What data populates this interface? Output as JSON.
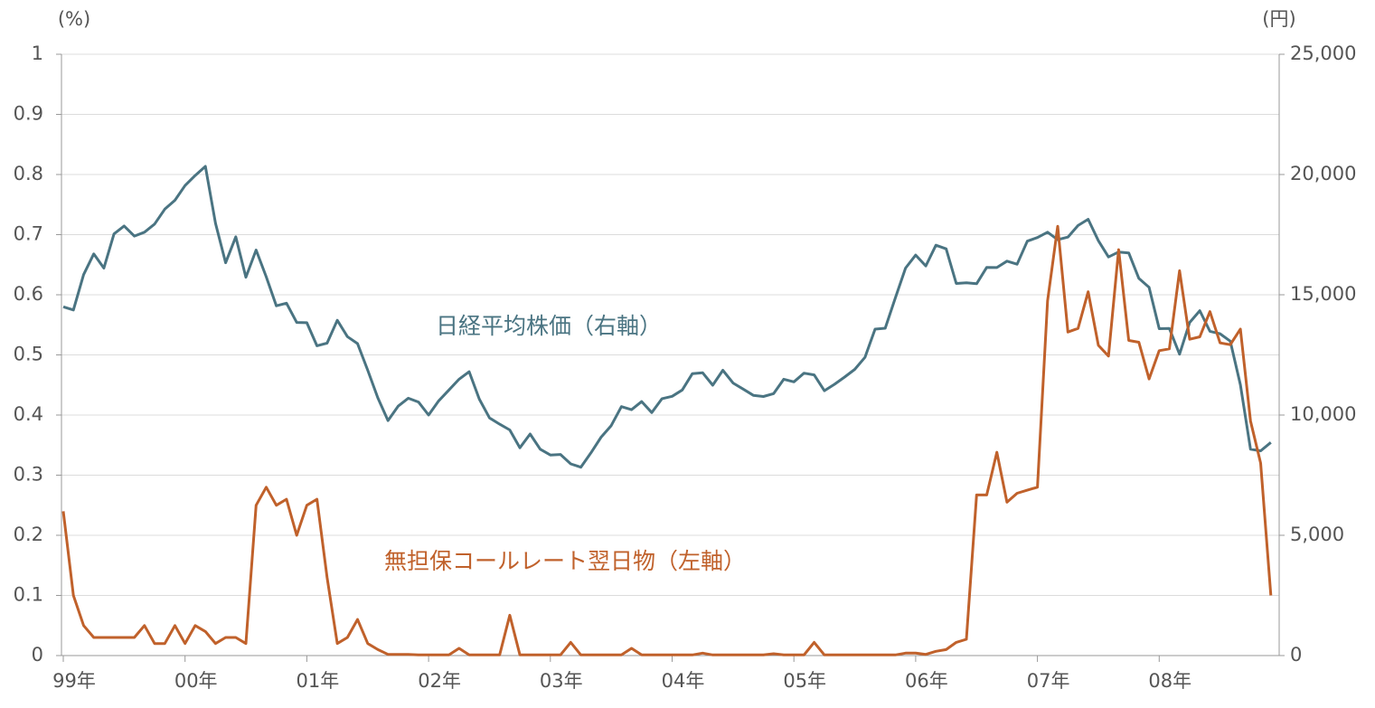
{
  "chart_data": {
    "type": "line",
    "y_unit_label": "(%)",
    "y2_unit_label": "(円)",
    "categories": [
      "99年",
      null,
      null,
      null,
      null,
      null,
      null,
      null,
      null,
      null,
      null,
      null,
      "00年",
      null,
      null,
      null,
      null,
      null,
      null,
      null,
      null,
      null,
      null,
      null,
      "01年",
      null,
      null,
      null,
      null,
      null,
      null,
      null,
      null,
      null,
      null,
      null,
      "02年",
      null,
      null,
      null,
      null,
      null,
      null,
      null,
      null,
      null,
      null,
      null,
      "03年",
      null,
      null,
      null,
      null,
      null,
      null,
      null,
      null,
      null,
      null,
      null,
      "04年",
      null,
      null,
      null,
      null,
      null,
      null,
      null,
      null,
      null,
      null,
      null,
      "05年",
      null,
      null,
      null,
      null,
      null,
      null,
      null,
      null,
      null,
      null,
      null,
      "06年",
      null,
      null,
      null,
      null,
      null,
      null,
      null,
      null,
      null,
      null,
      null,
      "07年",
      null,
      null,
      null,
      null,
      null,
      null,
      null,
      null,
      null,
      null,
      null,
      "08年",
      null,
      null,
      null,
      null,
      null,
      null,
      null,
      null,
      null,
      null,
      null
    ],
    "series": [
      {
        "name": "日経平均株価（右軸）",
        "color": "#4a7482",
        "axis": "y2",
        "label_pos": [
          607,
          362
        ],
        "values": [
          14500,
          14370,
          15840,
          16700,
          16110,
          17530,
          17860,
          17440,
          17600,
          17940,
          18560,
          18930,
          19540,
          19960,
          20340,
          17970,
          16330,
          17410,
          15730,
          16860,
          15750,
          14540,
          14650,
          13850,
          13840,
          12880,
          12990,
          13940,
          13260,
          12970,
          11860,
          10710,
          9770,
          10370,
          10700,
          10540,
          10000,
          10590,
          11040,
          11490,
          11800,
          10660,
          9880,
          9620,
          9380,
          8640,
          9210,
          8580,
          8340,
          8360,
          7970,
          7830,
          8430,
          9080,
          9560,
          10350,
          10220,
          10560,
          10100,
          10680,
          10780,
          11040,
          11720,
          11760,
          11240,
          11860,
          11330,
          11080,
          10820,
          10770,
          10890,
          11490,
          11380,
          11740,
          11670,
          11010,
          11280,
          11580,
          11900,
          12400,
          13570,
          13610,
          14870,
          16110,
          16650,
          16200,
          17060,
          16910,
          15470,
          15500,
          15460,
          16140,
          16130,
          16400,
          16270,
          17230,
          17380,
          17600,
          17290,
          17400,
          17880,
          18140,
          17250,
          16570,
          16780,
          16740,
          15680,
          15310,
          13590,
          13600,
          12530,
          13850,
          14340,
          13480,
          13380,
          13070,
          11260,
          8580,
          8510,
          8860
        ]
      },
      {
        "name": "無担保コールレート翌日物（左軸）",
        "color": "#c0612b",
        "axis": "y",
        "label_pos": [
          625,
          622
        ],
        "values": [
          0.24,
          0.1,
          0.05,
          0.03,
          0.03,
          0.03,
          0.03,
          0.03,
          0.05,
          0.02,
          0.02,
          0.05,
          0.02,
          0.05,
          0.04,
          0.02,
          0.03,
          0.03,
          0.02,
          0.25,
          0.28,
          0.25,
          0.26,
          0.2,
          0.25,
          0.26,
          0.13,
          0.02,
          0.03,
          0.06,
          0.02,
          0.01,
          0.002,
          0.002,
          0.002,
          0.001,
          0.001,
          0.001,
          0.001,
          0.012,
          0.001,
          0.001,
          0.001,
          0.001,
          0.067,
          0.001,
          0.001,
          0.001,
          0.001,
          0.001,
          0.022,
          0.001,
          0.001,
          0.001,
          0.001,
          0.001,
          0.012,
          0.001,
          0.001,
          0.001,
          0.001,
          0.001,
          0.001,
          0.004,
          0.001,
          0.001,
          0.001,
          0.001,
          0.001,
          0.001,
          0.003,
          0.001,
          0.001,
          0.001,
          0.022,
          0.001,
          0.001,
          0.001,
          0.001,
          0.001,
          0.001,
          0.001,
          0.001,
          0.004,
          0.004,
          0.002,
          0.007,
          0.01,
          0.022,
          0.027,
          0.267,
          0.267,
          0.338,
          0.255,
          0.27,
          0.275,
          0.28,
          0.59,
          0.714,
          0.538,
          0.544,
          0.605,
          0.516,
          0.498,
          0.675,
          0.524,
          0.521,
          0.46,
          0.507,
          0.51,
          0.64,
          0.526,
          0.53,
          0.572,
          0.52,
          0.517,
          0.543,
          0.39,
          0.32,
          0.1
        ]
      }
    ],
    "ylim": [
      0,
      1
    ],
    "yticks": [
      0,
      0.1,
      0.2,
      0.3,
      0.4,
      0.5,
      0.6,
      0.7,
      0.8,
      0.9,
      1
    ],
    "y2lim": [
      0,
      25000
    ],
    "y2ticks": [
      0,
      {
        "value": 5000,
        "label": "5,000"
      },
      {
        "value": 10000,
        "label": "10,000"
      },
      {
        "value": 15000,
        "label": "15,000"
      },
      {
        "value": 20000,
        "label": "20,000"
      },
      {
        "value": 25000,
        "label": "25,000"
      }
    ],
    "grid": true
  }
}
